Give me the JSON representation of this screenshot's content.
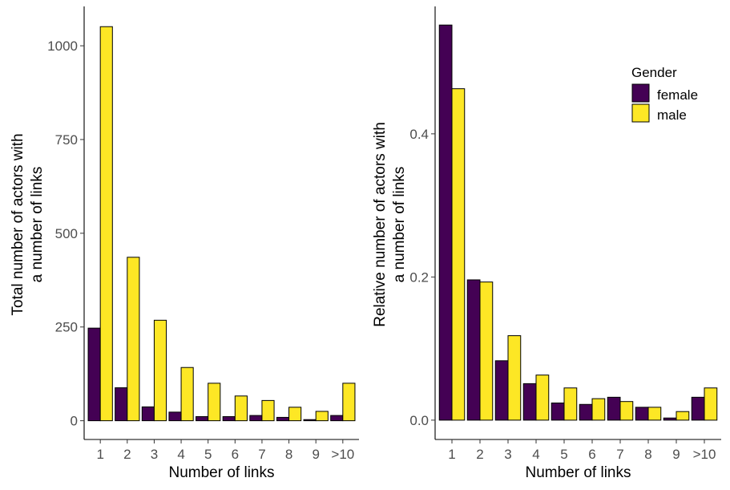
{
  "colors": {
    "female": "#440154",
    "male": "#FDE725",
    "bar_outline": "#000000",
    "axis": "#000000",
    "tick_text": "#4d4d4d"
  },
  "legend": {
    "title": "Gender",
    "entries": [
      "female",
      "male"
    ]
  },
  "chart_data": [
    {
      "type": "bar",
      "categories": [
        "1",
        "2",
        "3",
        "4",
        "5",
        "6",
        "7",
        "8",
        "9",
        ">10"
      ],
      "series": [
        {
          "name": "female",
          "values": [
            247,
            88,
            37,
            23,
            11,
            11,
            14,
            9,
            3,
            14
          ]
        },
        {
          "name": "male",
          "values": [
            1051,
            436,
            268,
            142,
            100,
            66,
            54,
            36,
            25,
            100
          ]
        }
      ],
      "xlabel": "Number of links",
      "ylabel_lines": [
        "Total number of actors with",
        "a number of links"
      ],
      "ylim": [
        -50,
        1105
      ],
      "yticks": [
        0,
        250,
        500,
        750,
        1000
      ],
      "ytick_labels": [
        "0",
        "250",
        "500",
        "750",
        "1000"
      ],
      "grid": false
    },
    {
      "type": "bar",
      "categories": [
        "1",
        "2",
        "3",
        "4",
        "5",
        "6",
        "7",
        "8",
        "9",
        ">10"
      ],
      "series": [
        {
          "name": "female",
          "values": [
            0.552,
            0.196,
            0.083,
            0.051,
            0.024,
            0.022,
            0.032,
            0.018,
            0.003,
            0.032
          ]
        },
        {
          "name": "male",
          "values": [
            0.463,
            0.193,
            0.118,
            0.063,
            0.045,
            0.03,
            0.026,
            0.018,
            0.012,
            0.045
          ]
        }
      ],
      "xlabel": "Number of links",
      "ylabel_lines": [
        "Relative number of actors with",
        "a number of links"
      ],
      "ylim": [
        -0.027,
        0.578
      ],
      "yticks": [
        0,
        0.2,
        0.4
      ],
      "ytick_labels": [
        "0.0",
        "0.2",
        "0.4"
      ],
      "grid": false,
      "legend_position": "top-right"
    }
  ]
}
